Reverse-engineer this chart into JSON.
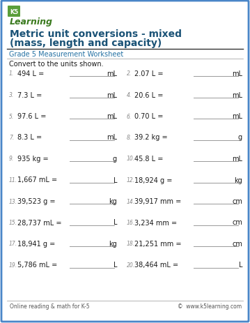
{
  "title_line1": "Metric unit conversions - mixed",
  "title_line2": "(mass, length and capacity)",
  "subtitle": "Grade 5 Measurement Worksheet",
  "instruction": "Convert to the units shown.",
  "problems": [
    {
      "num": "1.",
      "expr": "494 L =",
      "unit": "mL"
    },
    {
      "num": "2.",
      "expr": "2.07 L =",
      "unit": "mL"
    },
    {
      "num": "3.",
      "expr": "7.3 L =",
      "unit": "mL"
    },
    {
      "num": "4.",
      "expr": "20.6 L =",
      "unit": "mL"
    },
    {
      "num": "5.",
      "expr": "97.6 L =",
      "unit": "mL"
    },
    {
      "num": "6.",
      "expr": "0.70 L =",
      "unit": "mL"
    },
    {
      "num": "7.",
      "expr": "8.3 L =",
      "unit": "mL"
    },
    {
      "num": "8.",
      "expr": "39.2 kg =",
      "unit": "g"
    },
    {
      "num": "9.",
      "expr": "935 kg =",
      "unit": "g"
    },
    {
      "num": "10.",
      "expr": "45.8 L =",
      "unit": "mL"
    },
    {
      "num": "11.",
      "expr": "1,667 mL =",
      "unit": "L"
    },
    {
      "num": "12.",
      "expr": "18,924 g =",
      "unit": "kg"
    },
    {
      "num": "13.",
      "expr": "39,523 g =",
      "unit": "kg"
    },
    {
      "num": "14.",
      "expr": "39,917 mm =",
      "unit": "cm"
    },
    {
      "num": "15.",
      "expr": "28,737 mL =",
      "unit": "L"
    },
    {
      "num": "16.",
      "expr": "3,234 mm =",
      "unit": "cm"
    },
    {
      "num": "17.",
      "expr": "18,941 g =",
      "unit": "kg"
    },
    {
      "num": "18.",
      "expr": "21,251 mm =",
      "unit": "cm"
    },
    {
      "num": "19.",
      "expr": "5,786 mL =",
      "unit": "L"
    },
    {
      "num": "20.",
      "expr": "38,464 mL =",
      "unit": "L"
    }
  ],
  "footer_left": "Online reading & math for K-5",
  "footer_right": "©  www.k5learning.com",
  "border_color": "#4a86c8",
  "title_color": "#1a5276",
  "subtitle_color": "#2471a3",
  "text_color": "#1a1a1a",
  "bg_color": "#ffffff",
  "line_color": "#999999",
  "footer_line_color": "#aaaaaa",
  "num_color": "#888888",
  "logo_green": "#4a7c2f",
  "logo_blue": "#2471a3"
}
